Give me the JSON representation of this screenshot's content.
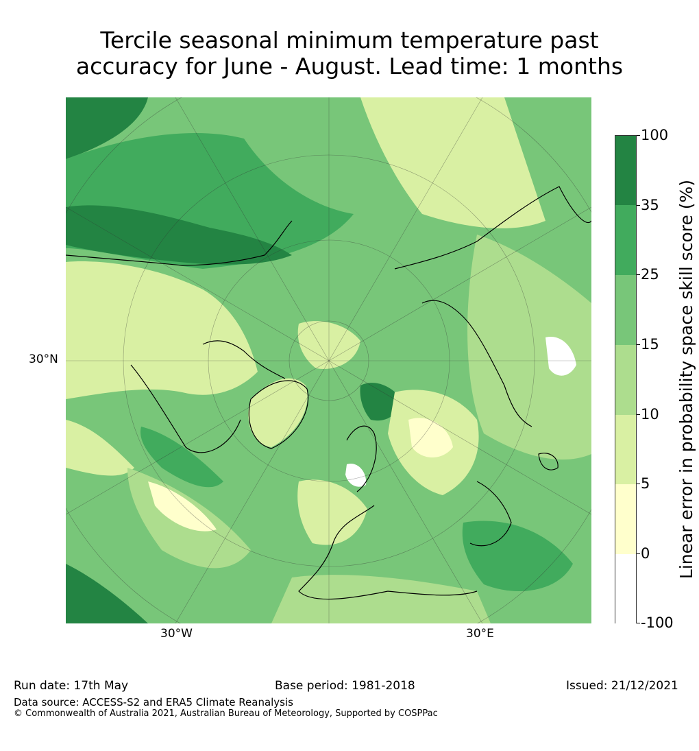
{
  "title": {
    "line1": "Tercile seasonal minimum temperature past",
    "line2": "accuracy for June - August. Lead time: 1 months"
  },
  "map": {
    "lat_label": "30°N",
    "lon_label_west": "30°W",
    "lon_label_east": "30°E",
    "projection": "north polar stereographic",
    "region": "Northern Hemisphere"
  },
  "colorbar": {
    "label": "Linear error in probability space skill score (%)",
    "ticks": [
      "100",
      "35",
      "25",
      "15",
      "10",
      "5",
      "0",
      "-100"
    ],
    "bins": [
      {
        "range": "35 to 100",
        "color": "#238443"
      },
      {
        "range": "25 to 35",
        "color": "#41ab5d"
      },
      {
        "range": "15 to 25",
        "color": "#78c679"
      },
      {
        "range": "10 to 15",
        "color": "#addd8e"
      },
      {
        "range": "5 to 10",
        "color": "#d9f0a3"
      },
      {
        "range": "0 to 5",
        "color": "#ffffcc"
      },
      {
        "range": "-100 to 0",
        "color": "#ffffff"
      }
    ]
  },
  "footer": {
    "run_date": "Run date: 17th May",
    "base_period": "Base period: 1981-2018",
    "issued": "Issued: 21/12/2021",
    "data_source": "Data source: ACCESS-S2 and ERA5 Climate Reanalysis",
    "copyright": "© Commonwealth of Australia 2021, Australian Bureau of Meteorology, Supported by COSPPac"
  }
}
